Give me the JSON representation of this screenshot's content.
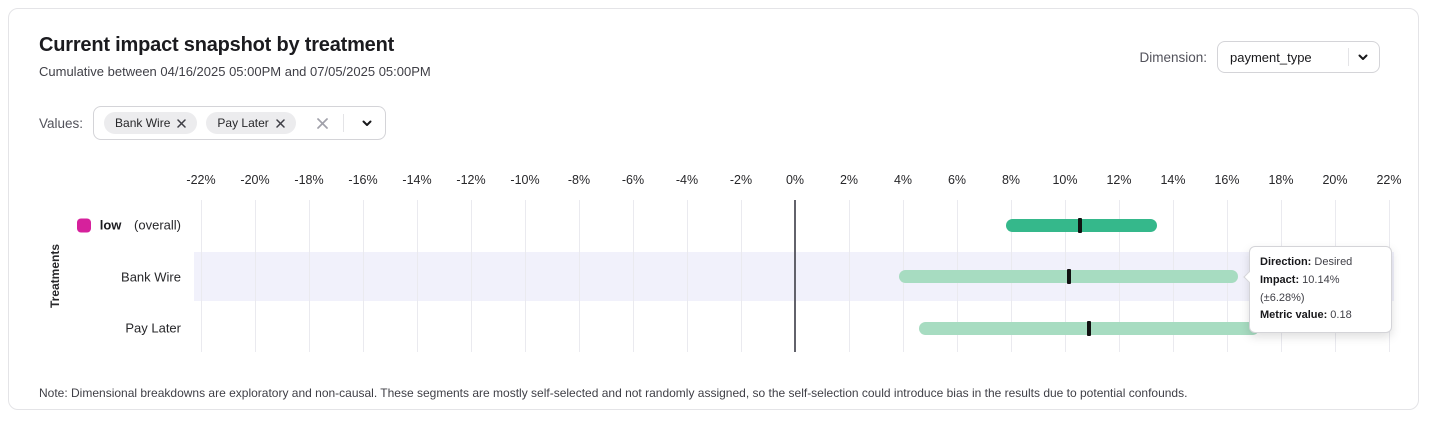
{
  "header": {
    "title": "Current impact snapshot by treatment",
    "subtitle": "Cumulative between 04/16/2025 05:00PM and 07/05/2025 05:00PM",
    "dimension_label": "Dimension:",
    "dimension_value": "payment_type"
  },
  "values_filter": {
    "label": "Values:",
    "chips": [
      "Bank Wire",
      "Pay Later"
    ]
  },
  "icons": {
    "dimension_dropdown": "chevron-down-icon",
    "values_dropdown": "chevron-down-icon",
    "values_clear": "close-icon",
    "chip_remove": "close-icon"
  },
  "chart_data": {
    "type": "bar",
    "variant": "horizontal-confidence-interval",
    "title": "Current impact snapshot by treatment",
    "ylabel": "Treatments",
    "axis": {
      "min": -22,
      "max": 22,
      "step": 2,
      "unit": "%"
    },
    "grid": true,
    "zero_line": true,
    "colors": {
      "overall_bar": "#35b88b",
      "segment_bar": "#a7dcc1",
      "estimate_tick": "#111111",
      "legend_overall": "#d6219c",
      "highlight_band": "#f1f1fb"
    },
    "rows": [
      {
        "label": "low",
        "suffix": "(overall)",
        "legend_color": "#d6219c",
        "estimate": 10.56,
        "ci_low": 7.8,
        "ci_high": 13.4,
        "bar_color": "#35b88b",
        "highlighted": false
      },
      {
        "label": "Bank Wire",
        "suffix": "",
        "legend_color": null,
        "estimate": 10.14,
        "ci_low": 3.86,
        "ci_high": 16.42,
        "bar_color": "#a7dcc1",
        "highlighted": true
      },
      {
        "label": "Pay Later",
        "suffix": "",
        "legend_color": null,
        "estimate": 10.9,
        "ci_low": 4.6,
        "ci_high": 17.2,
        "bar_color": "#a7dcc1",
        "highlighted": false
      }
    ]
  },
  "tooltip": {
    "target": "Bank Wire",
    "rows": [
      {
        "label": "Direction:",
        "value": "Desired"
      },
      {
        "label": "Impact:",
        "value": "10.14% (±6.28%)"
      },
      {
        "label": "Metric value:",
        "value": "0.18"
      }
    ]
  },
  "note": "Note: Dimensional breakdowns are exploratory and non-causal. These segments are mostly self-selected and not randomly assigned, so the self-selection could introduce bias in the results due to potential confounds."
}
